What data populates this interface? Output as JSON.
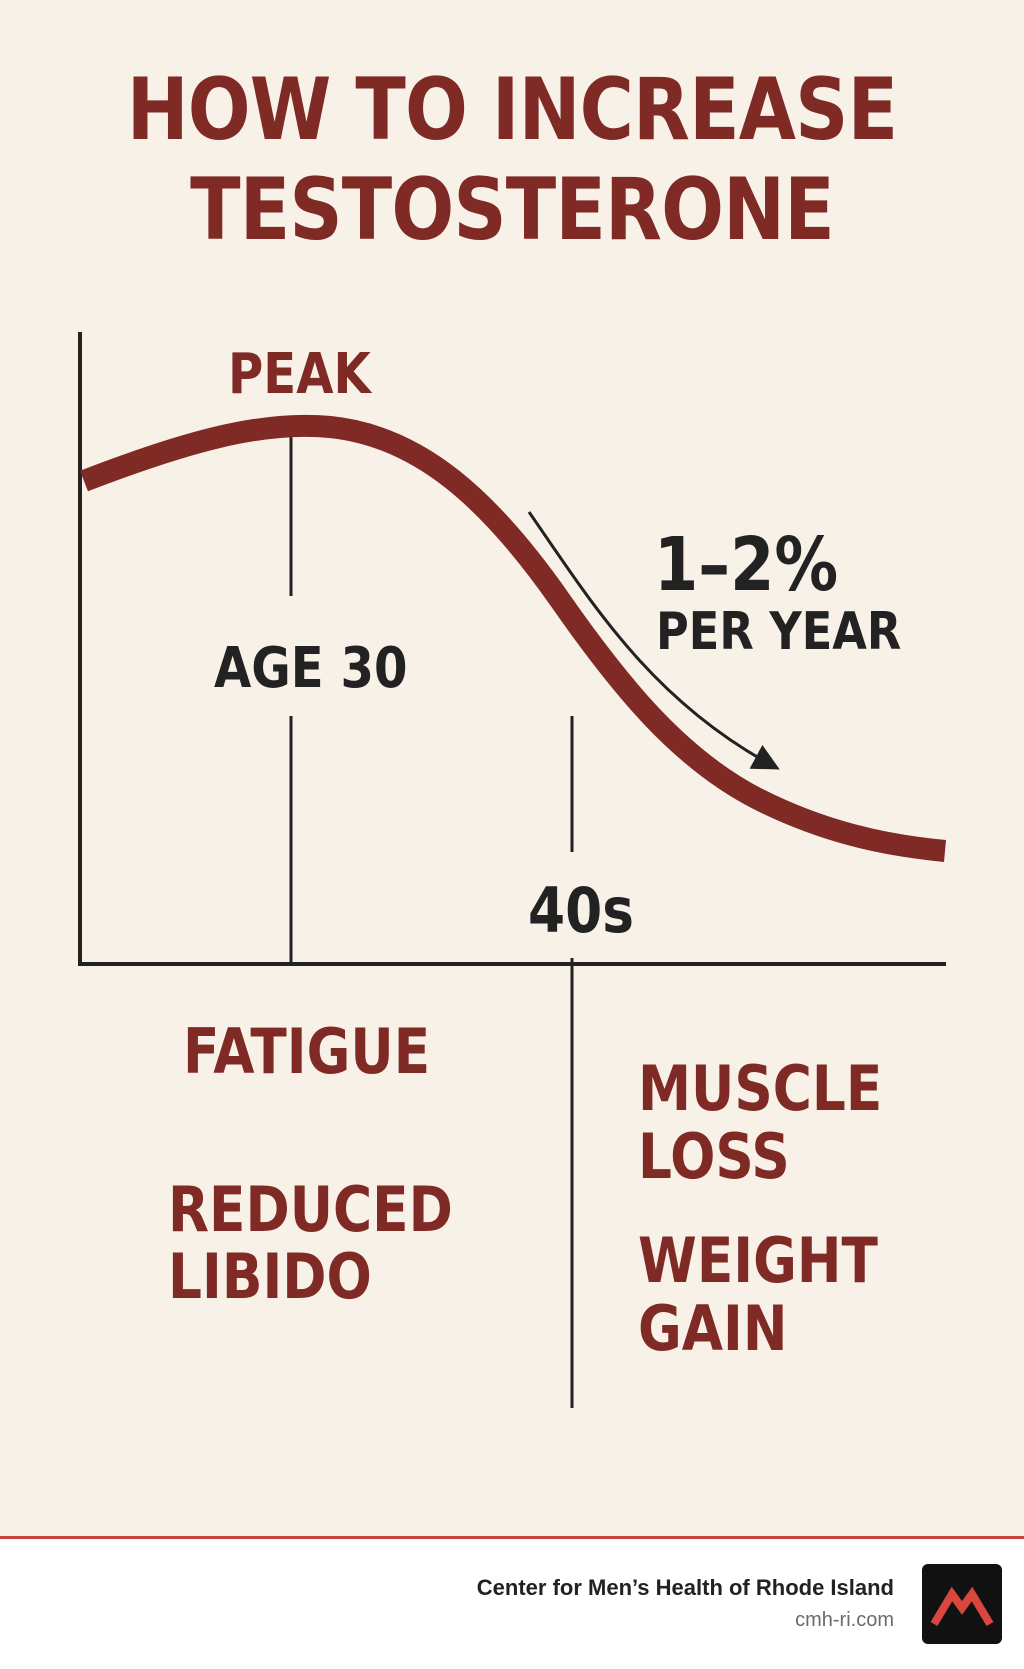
{
  "title": {
    "line1": "HOW TO INCREASE",
    "line2": "TESTOSTERONE"
  },
  "diagram": {
    "peak_label": "PEAK",
    "age_label": "AGE 30",
    "forties_label": "40s",
    "rate_value": "1–2%",
    "rate_unit": "PER YEAR"
  },
  "symptoms": {
    "left": [
      "FATIGUE",
      "REDUCED",
      "LIBIDO"
    ],
    "right": [
      "MUSCLE",
      "LOSS",
      "WEIGHT",
      "GAIN"
    ]
  },
  "footer": {
    "organization": "Center for Men’s Health of Rhode Island",
    "website": "cmh-ri.com"
  },
  "colors": {
    "accent": "#802a25",
    "text_dark": "#222222",
    "background": "#f7f1e8",
    "footer_rule": "#c9453d"
  },
  "icons": {
    "logo": "mountain-logo-icon",
    "arrow": "decline-arrow-icon"
  }
}
